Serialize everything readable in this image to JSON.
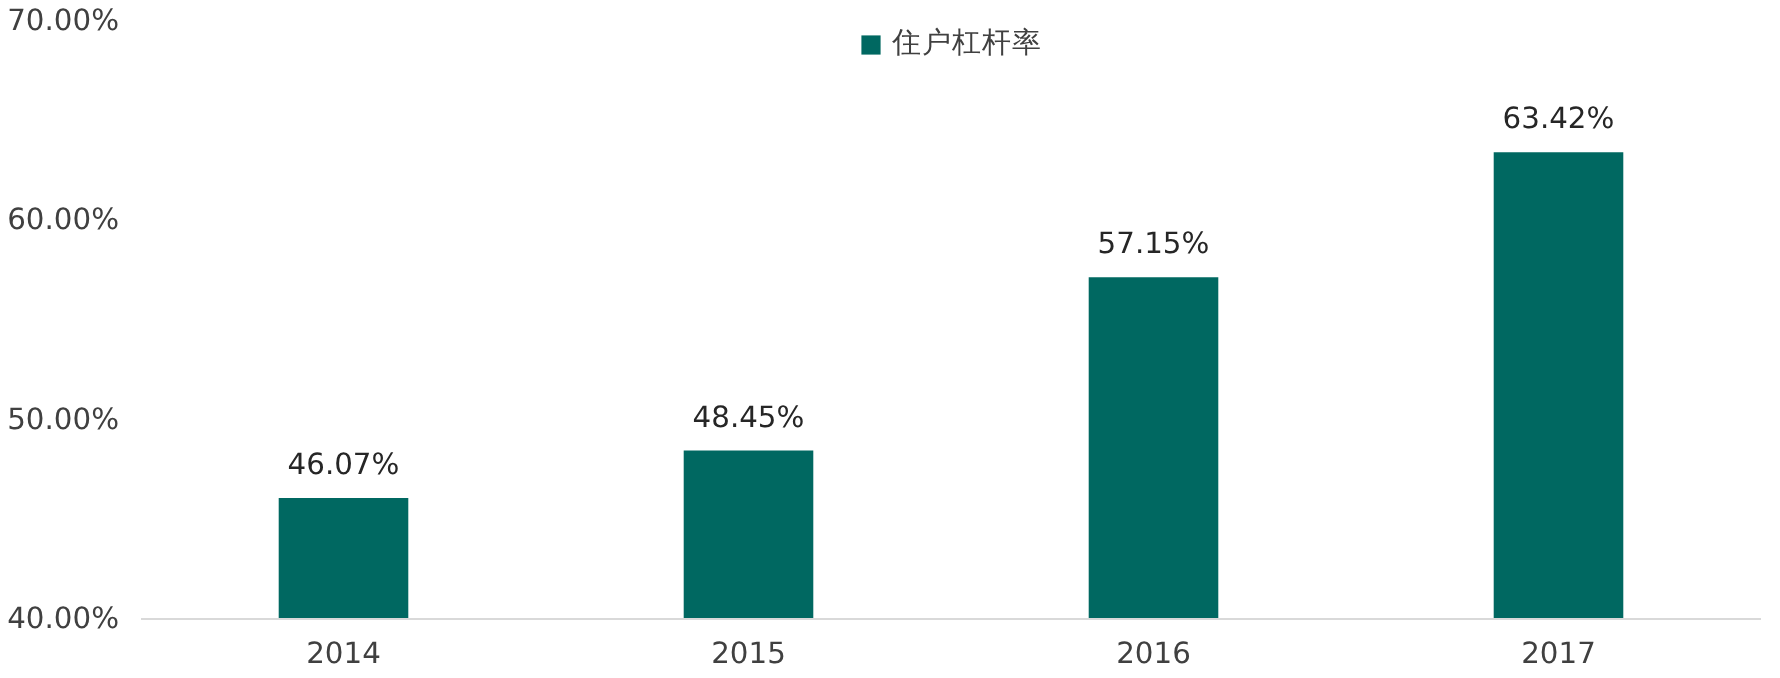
{
  "chart_data": {
    "type": "bar",
    "categories": [
      "2014",
      "2015",
      "2016",
      "2017"
    ],
    "series": [
      {
        "name": "住户杠杆率",
        "color": "#006861",
        "values": [
          46.07,
          48.45,
          57.15,
          63.42
        ],
        "value_labels": [
          "46.07%",
          "48.45%",
          "57.15%",
          "63.42%"
        ]
      }
    ],
    "ylim": [
      40,
      70
    ],
    "yticks": [
      {
        "value": 40,
        "label": "40.00%"
      },
      {
        "value": 50,
        "label": "50.00%"
      },
      {
        "value": 60,
        "label": "60.00%"
      },
      {
        "value": 70,
        "label": "70.00%"
      }
    ],
    "grid": false,
    "legend": "top"
  }
}
